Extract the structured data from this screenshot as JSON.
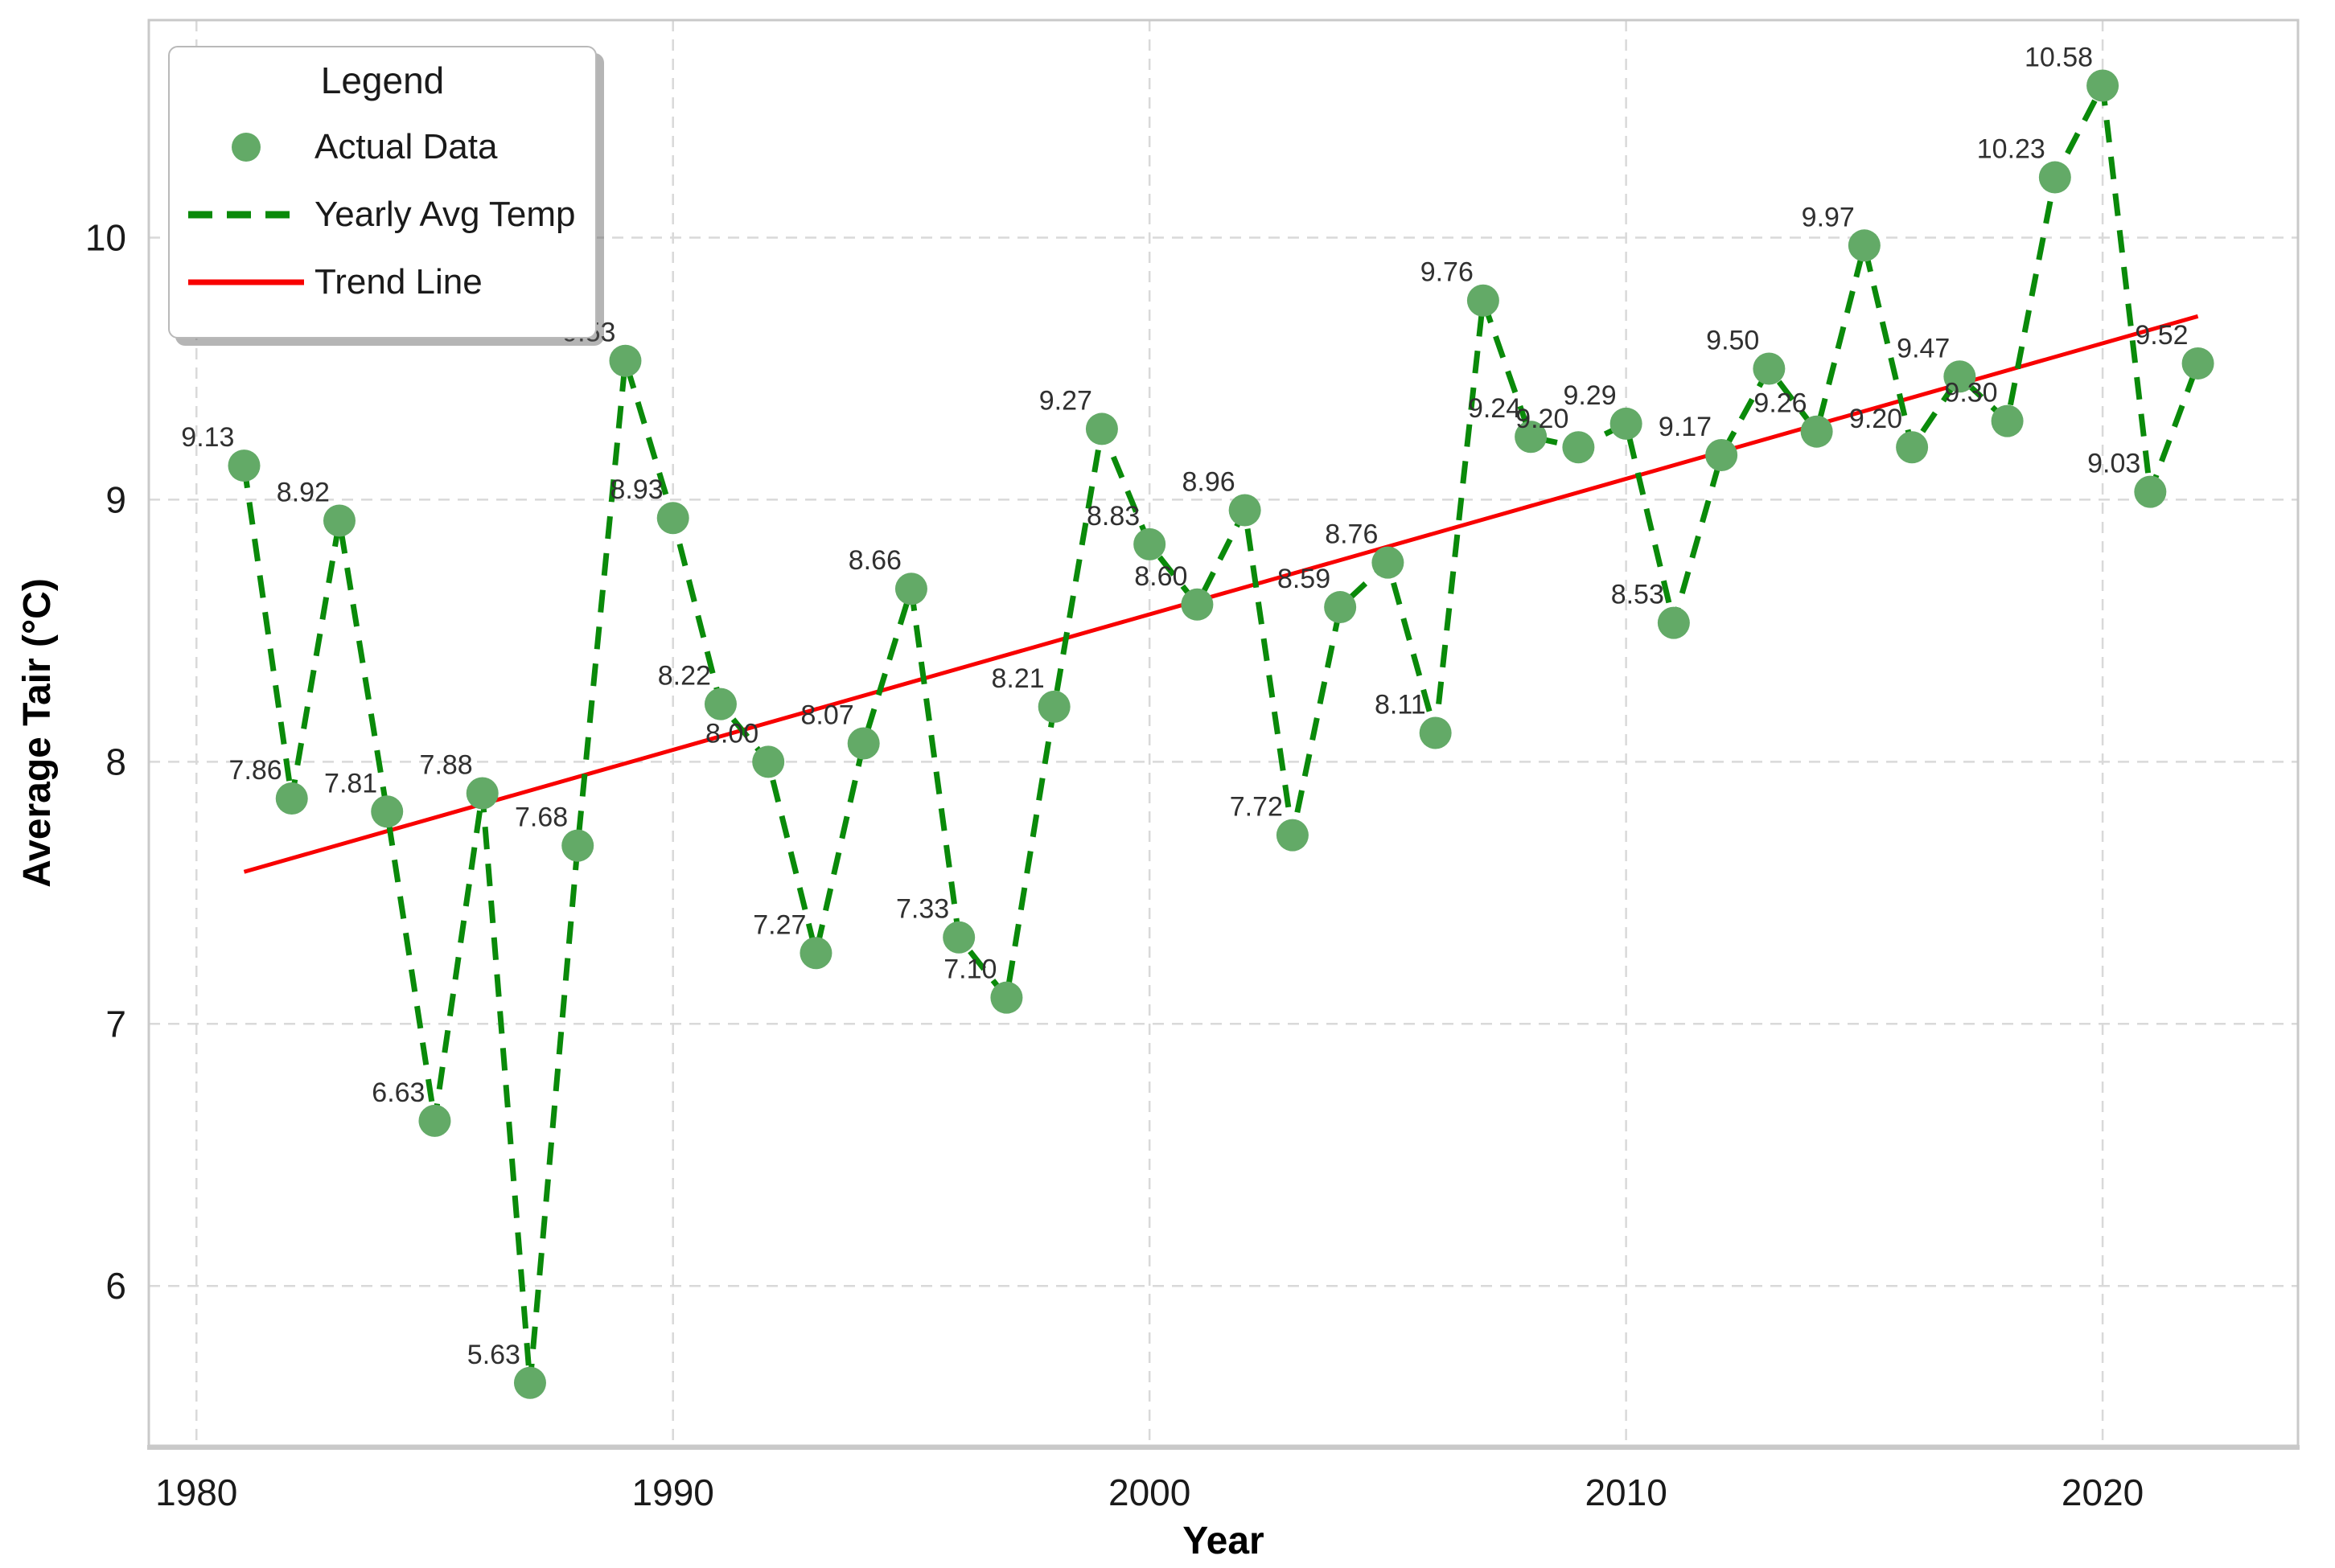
{
  "legend": {
    "title": "Legend",
    "items": [
      {
        "label": "Actual Data",
        "marker": "circle-marker-icon",
        "color": "#63aa67"
      },
      {
        "label": "Yearly Avg Temp",
        "marker": "dashed-line-marker-icon",
        "color": "#0a8a0a"
      },
      {
        "label": "Trend Line",
        "marker": "solid-line-marker-icon",
        "color": "#f80000"
      }
    ]
  },
  "chart_data": {
    "type": "line",
    "title": "",
    "xlabel": "Year",
    "ylabel": "Average Tair (°C)",
    "x": [
      1981,
      1982,
      1983,
      1984,
      1985,
      1986,
      1987,
      1988,
      1989,
      1990,
      1991,
      1992,
      1993,
      1994,
      1995,
      1996,
      1997,
      1998,
      1999,
      2000,
      2001,
      2002,
      2003,
      2004,
      2005,
      2006,
      2007,
      2008,
      2009,
      2010,
      2011,
      2012,
      2013,
      2014,
      2015,
      2016,
      2017,
      2018,
      2019,
      2020,
      2021,
      2022
    ],
    "series": [
      {
        "name": "Yearly Avg Temp",
        "style": "dashed-line-with-markers",
        "line_color": "#0a8a0a",
        "marker_color": "#63aa67",
        "values": [
          9.13,
          7.86,
          8.92,
          7.81,
          6.63,
          7.88,
          5.63,
          7.68,
          9.53,
          8.93,
          8.22,
          8.0,
          7.27,
          8.07,
          8.66,
          7.33,
          7.1,
          8.21,
          9.27,
          8.83,
          8.6,
          8.96,
          7.72,
          8.59,
          8.76,
          8.11,
          9.76,
          9.24,
          9.2,
          9.29,
          8.53,
          9.17,
          9.5,
          9.26,
          9.97,
          9.2,
          9.47,
          9.3,
          10.23,
          10.58,
          9.03,
          9.52
        ],
        "point_labels": [
          "9.13",
          "7.86",
          "8.92",
          "7.81",
          "6.63",
          "7.88",
          "5.63",
          "7.68",
          "9.53",
          "8.93",
          "8.22",
          "8.00",
          "7.27",
          "8.07",
          "8.66",
          "7.33",
          "7.10",
          "8.21",
          "9.27",
          "8.83",
          "8.60",
          "8.96",
          "7.72",
          "8.59",
          "8.76",
          "8.11",
          "9.76",
          "9.24",
          "9.20",
          "9.29",
          "8.53",
          "9.17",
          "9.50",
          "9.26",
          "9.97",
          "9.20",
          "9.47",
          "9.30",
          "10.23",
          "10.58",
          "9.03",
          "9.52"
        ]
      },
      {
        "name": "Trend Line",
        "style": "solid-line",
        "line_color": "#f80000",
        "x": [
          1981,
          2022
        ],
        "values": [
          7.58,
          9.7
        ]
      }
    ],
    "xticks": [
      1980,
      1990,
      2000,
      2010,
      2020
    ],
    "yticks": [
      6,
      7,
      8,
      9,
      10
    ],
    "xlim": [
      1979.0,
      2024.1
    ],
    "ylim": [
      5.39,
      10.83
    ],
    "grid": "dashed both axes",
    "legend_position": "upper left",
    "colors": {
      "grid": "#d9d9d9",
      "spine": "#c9c9c9",
      "tick_label": "#1a1a1a",
      "axis_label": "#000000",
      "point_label": "#303030"
    }
  }
}
